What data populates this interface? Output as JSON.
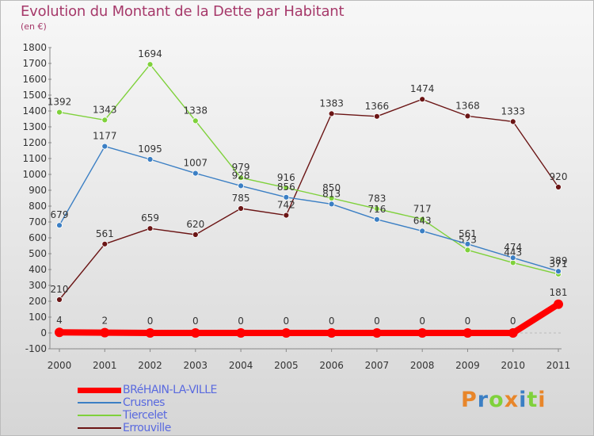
{
  "chart_data": {
    "type": "line",
    "title": "Evolution du Montant de la Dette par Habitant",
    "subtitle": "(en €)",
    "x": [
      "2000",
      "2001",
      "2002",
      "2003",
      "2004",
      "2005",
      "2006",
      "2007",
      "2008",
      "2009",
      "2010",
      "2011"
    ],
    "ylim": [
      -100,
      1800
    ],
    "yticks": [
      "-100",
      "0",
      "100",
      "200",
      "300",
      "400",
      "500",
      "600",
      "700",
      "800",
      "900",
      "1000",
      "1100",
      "1200",
      "1300",
      "1400",
      "1500",
      "1600",
      "1700",
      "1800"
    ],
    "grid": false,
    "legend_position": "bottom-left",
    "series": [
      {
        "name": "BRéHAIN-LA-VILLE",
        "color": "#ff0000",
        "values": [
          4,
          2,
          0,
          0,
          0,
          0,
          0,
          0,
          0,
          0,
          0,
          181
        ],
        "labels": [
          "4",
          "2",
          "0",
          "0",
          "0",
          "0",
          "0",
          "0",
          "0",
          "0",
          "0",
          "181"
        ]
      },
      {
        "name": "Crusnes",
        "color": "#3b7fc4",
        "values": [
          679,
          1177,
          1095,
          1007,
          928,
          856,
          813,
          716,
          643,
          561,
          474,
          389
        ],
        "labels": [
          "679",
          "1177",
          "1095",
          "1007",
          "928",
          "856",
          "813",
          "716",
          "643",
          "561",
          "474",
          "389"
        ]
      },
      {
        "name": "Tiercelet",
        "color": "#7fd13b",
        "values": [
          1392,
          1343,
          1694,
          1338,
          979,
          916,
          850,
          783,
          717,
          523,
          443,
          371
        ],
        "labels": [
          "1392",
          "1343",
          "1694",
          "1338",
          "979",
          "916",
          "850",
          "783",
          "717",
          "523",
          "443",
          "371"
        ]
      },
      {
        "name": "Errouville",
        "color": "#6b1515",
        "values": [
          210,
          561,
          659,
          620,
          785,
          742,
          1383,
          1366,
          1474,
          1368,
          1333,
          920
        ],
        "labels": [
          "210",
          "561",
          "659",
          "620",
          "785",
          "742",
          "1383",
          "1366",
          "1474",
          "1368",
          "1333",
          "920"
        ]
      }
    ]
  },
  "legend": {
    "items": [
      {
        "label": "BRéHAIN-LA-VILLE",
        "color": "#ff0000"
      },
      {
        "label": "Crusnes",
        "color": "#3b7fc4"
      },
      {
        "label": "Tiercelet",
        "color": "#7fd13b"
      },
      {
        "label": "Errouville",
        "color": "#6b1515"
      }
    ]
  },
  "logo": {
    "letters": [
      "P",
      "r",
      "o",
      "x",
      "i",
      "t",
      "i"
    ],
    "colors": [
      "#e8862a",
      "#3b7fc4",
      "#7fd13b",
      "#e8862a",
      "#3b7fc4",
      "#7fd13b",
      "#e8862a"
    ]
  }
}
